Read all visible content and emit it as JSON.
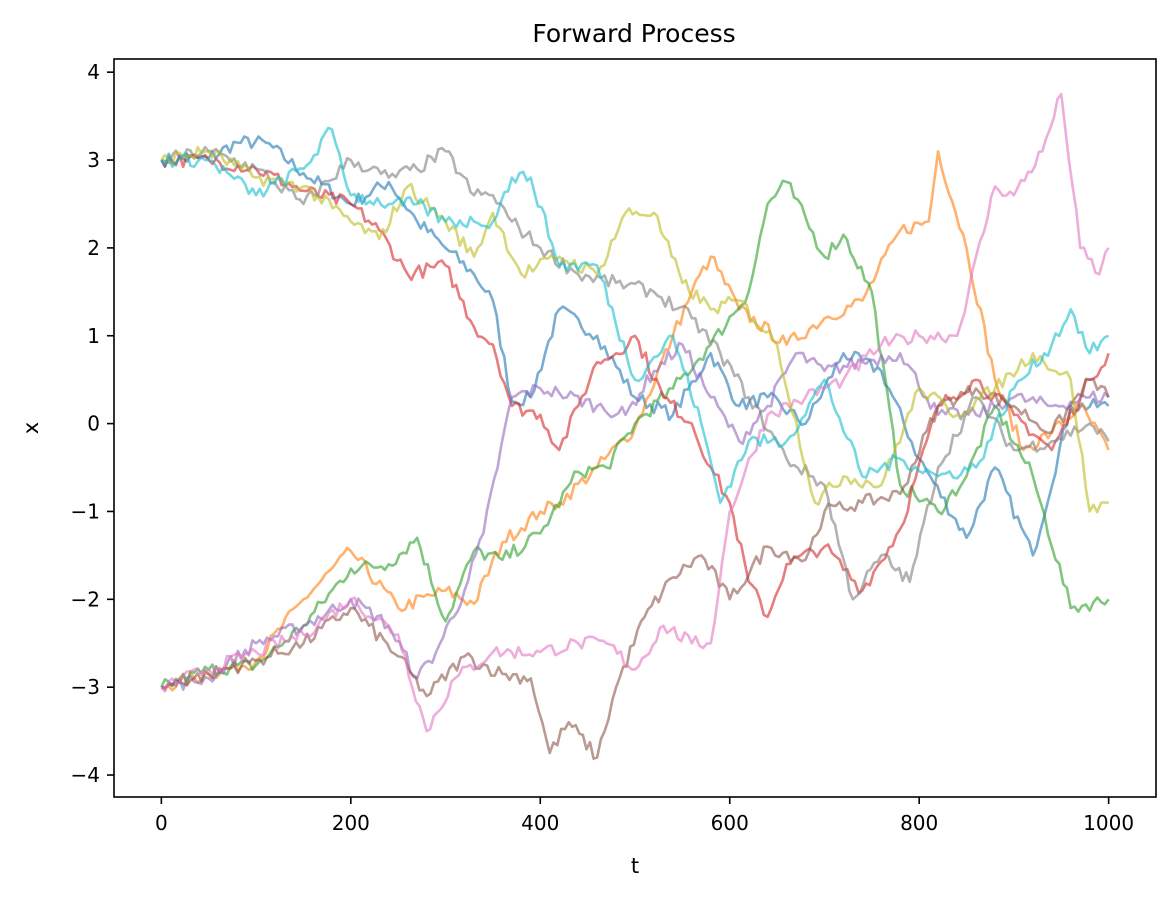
{
  "chart_data": {
    "type": "line",
    "title": "Forward Process",
    "xlabel": "t",
    "ylabel": "x",
    "xlim": [
      -50,
      1050
    ],
    "ylim": [
      -4.25,
      4.15
    ],
    "xticks": [
      0,
      200,
      400,
      600,
      800,
      1000
    ],
    "xtick_labels": [
      "0",
      "200",
      "400",
      "600",
      "800",
      "1000"
    ],
    "yticks": [
      -4,
      -3,
      -2,
      -1,
      0,
      1,
      2,
      3,
      4
    ],
    "ytick_labels": [
      "−4",
      "−3",
      "−2",
      "−1",
      "0",
      "1",
      "2",
      "3",
      "4"
    ],
    "grid": false,
    "line_alpha": 0.6,
    "series": [
      {
        "color": "#1f77b4",
        "x": [
          0,
          50,
          80,
          110,
          150,
          200,
          240,
          270,
          300,
          330,
          350,
          370,
          390,
          420,
          460,
          500,
          540,
          580,
          610,
          640,
          680,
          720,
          760,
          800,
          850,
          880,
          920,
          960,
          1000
        ],
        "y": [
          3.0,
          3.02,
          3.2,
          3.2,
          2.85,
          2.5,
          2.75,
          2.3,
          2.0,
          1.7,
          1.4,
          0.25,
          0.3,
          1.3,
          1.0,
          0.3,
          0.1,
          0.8,
          0.2,
          0.3,
          0.0,
          0.8,
          0.6,
          -0.4,
          -1.3,
          -0.5,
          -1.5,
          0.2,
          0.2
        ]
      },
      {
        "color": "#ff7f0e",
        "x": [
          0,
          50,
          100,
          150,
          200,
          250,
          300,
          330,
          360,
          400,
          420,
          460,
          500,
          540,
          560,
          580,
          610,
          660,
          700,
          740,
          780,
          810,
          820,
          850,
          880,
          910,
          940,
          970,
          1000
        ],
        "y": [
          -3.0,
          -2.85,
          -2.7,
          -2.0,
          -1.45,
          -2.1,
          -1.9,
          -2.05,
          -1.35,
          -1.0,
          -0.9,
          -0.5,
          -0.05,
          1.0,
          1.5,
          1.9,
          1.3,
          0.9,
          1.2,
          1.4,
          2.2,
          2.3,
          3.1,
          2.0,
          0.5,
          -0.3,
          -0.1,
          0.2,
          -0.3
        ]
      },
      {
        "color": "#2ca02c",
        "x": [
          0,
          50,
          100,
          150,
          200,
          240,
          270,
          300,
          330,
          360,
          400,
          440,
          470,
          500,
          540,
          580,
          620,
          640,
          660,
          700,
          720,
          750,
          780,
          820,
          850,
          880,
          920,
          960,
          1000
        ],
        "y": [
          -3.0,
          -2.8,
          -2.75,
          -2.3,
          -1.65,
          -1.6,
          -1.3,
          -2.25,
          -1.45,
          -1.55,
          -1.25,
          -0.55,
          -0.5,
          0.0,
          0.4,
          0.9,
          1.5,
          2.5,
          2.75,
          1.9,
          2.15,
          1.5,
          -0.7,
          -1.0,
          -0.6,
          0.2,
          -0.6,
          -2.1,
          -2.0
        ]
      },
      {
        "color": "#d62728",
        "x": [
          0,
          50,
          100,
          150,
          200,
          230,
          260,
          300,
          330,
          350,
          370,
          400,
          420,
          440,
          460,
          480,
          500,
          530,
          560,
          580,
          600,
          620,
          640,
          660,
          700,
          740,
          780,
          820,
          860,
          900,
          940,
          980,
          1000
        ],
        "y": [
          3.0,
          3.0,
          2.9,
          2.65,
          2.5,
          2.2,
          1.7,
          1.8,
          1.1,
          0.9,
          0.2,
          0.1,
          -0.3,
          0.2,
          0.7,
          0.8,
          1.0,
          0.3,
          0.0,
          -0.5,
          -0.9,
          -1.8,
          -2.2,
          -1.6,
          -1.4,
          -1.9,
          -1.2,
          0.2,
          0.5,
          0.1,
          -0.3,
          0.5,
          0.8
        ]
      },
      {
        "color": "#9467bd",
        "x": [
          0,
          50,
          100,
          150,
          200,
          240,
          270,
          290,
          320,
          340,
          370,
          400,
          420,
          460,
          490,
          520,
          550,
          580,
          610,
          640,
          670,
          700,
          740,
          780,
          820,
          860,
          900,
          940,
          980,
          1000
        ],
        "y": [
          -3.0,
          -2.9,
          -2.5,
          -2.3,
          -2.0,
          -2.3,
          -2.9,
          -2.6,
          -1.9,
          -1.25,
          0.3,
          0.4,
          0.35,
          0.2,
          0.1,
          0.6,
          0.9,
          0.3,
          -0.2,
          0.2,
          0.8,
          0.6,
          0.7,
          0.8,
          0.1,
          0.1,
          0.3,
          0.2,
          0.3,
          0.3
        ]
      },
      {
        "color": "#8c564b",
        "x": [
          0,
          50,
          100,
          150,
          200,
          250,
          280,
          320,
          360,
          390,
          410,
          430,
          460,
          480,
          510,
          540,
          570,
          600,
          640,
          680,
          700,
          740,
          780,
          820,
          860,
          900,
          940,
          980,
          1000
        ],
        "y": [
          -3.0,
          -2.85,
          -2.7,
          -2.5,
          -2.1,
          -2.65,
          -3.1,
          -2.65,
          -2.85,
          -2.9,
          -3.75,
          -3.4,
          -3.8,
          -3.0,
          -2.2,
          -1.75,
          -1.5,
          -2.0,
          -1.4,
          -1.55,
          -1.0,
          -0.9,
          -0.8,
          0.2,
          0.4,
          0.2,
          -0.1,
          0.5,
          0.3
        ]
      },
      {
        "color": "#e377c2",
        "x": [
          0,
          50,
          100,
          150,
          200,
          250,
          280,
          310,
          350,
          400,
          440,
          470,
          500,
          530,
          560,
          580,
          600,
          640,
          680,
          720,
          760,
          800,
          840,
          880,
          900,
          930,
          950,
          970,
          990,
          1000
        ],
        "y": [
          -3.0,
          -2.8,
          -2.6,
          -2.4,
          -2.0,
          -2.4,
          -3.5,
          -2.9,
          -2.6,
          -2.6,
          -2.5,
          -2.5,
          -2.8,
          -2.3,
          -2.5,
          -2.5,
          -1.0,
          0.1,
          0.3,
          0.5,
          0.9,
          1.0,
          1.0,
          2.7,
          2.6,
          3.1,
          3.75,
          2.0,
          1.7,
          2.0
        ]
      },
      {
        "color": "#7f7f7f",
        "x": [
          0,
          50,
          100,
          150,
          200,
          240,
          270,
          300,
          330,
          350,
          370,
          400,
          440,
          480,
          520,
          560,
          590,
          620,
          660,
          700,
          730,
          760,
          790,
          820,
          860,
          900,
          940,
          980,
          1000
        ],
        "y": [
          3.0,
          3.1,
          2.9,
          2.5,
          3.0,
          2.8,
          2.9,
          3.1,
          2.6,
          2.6,
          2.3,
          2.0,
          1.7,
          1.6,
          1.5,
          1.2,
          0.8,
          0.3,
          -0.4,
          -0.7,
          -2.0,
          -1.5,
          -1.8,
          -0.5,
          0.3,
          -0.3,
          -0.2,
          0.0,
          -0.2
        ]
      },
      {
        "color": "#bcbd22",
        "x": [
          0,
          50,
          100,
          150,
          200,
          230,
          260,
          300,
          330,
          350,
          380,
          420,
          460,
          490,
          520,
          550,
          580,
          610,
          650,
          690,
          720,
          760,
          800,
          840,
          880,
          920,
          960,
          980,
          1000
        ],
        "y": [
          3.0,
          3.1,
          2.8,
          2.7,
          2.3,
          2.1,
          2.7,
          2.3,
          1.9,
          2.4,
          1.7,
          1.9,
          1.7,
          2.4,
          2.4,
          1.6,
          1.3,
          1.4,
          0.9,
          -0.9,
          -0.6,
          -0.7,
          0.4,
          0.1,
          0.4,
          0.8,
          0.5,
          -1.0,
          -0.9
        ]
      },
      {
        "color": "#17becf",
        "x": [
          0,
          50,
          100,
          150,
          180,
          200,
          240,
          270,
          300,
          330,
          350,
          370,
          390,
          420,
          460,
          500,
          540,
          570,
          590,
          620,
          660,
          700,
          740,
          780,
          820,
          860,
          900,
          940,
          960,
          980,
          1000
        ],
        "y": [
          3.0,
          3.0,
          2.6,
          2.9,
          3.35,
          2.6,
          2.5,
          2.5,
          2.3,
          2.3,
          2.3,
          2.8,
          2.8,
          1.8,
          1.8,
          0.5,
          1.0,
          0.0,
          -0.9,
          -0.2,
          -0.2,
          0.5,
          -0.6,
          -0.4,
          -0.6,
          -0.5,
          0.4,
          0.9,
          1.3,
          0.8,
          1.0
        ]
      }
    ]
  }
}
